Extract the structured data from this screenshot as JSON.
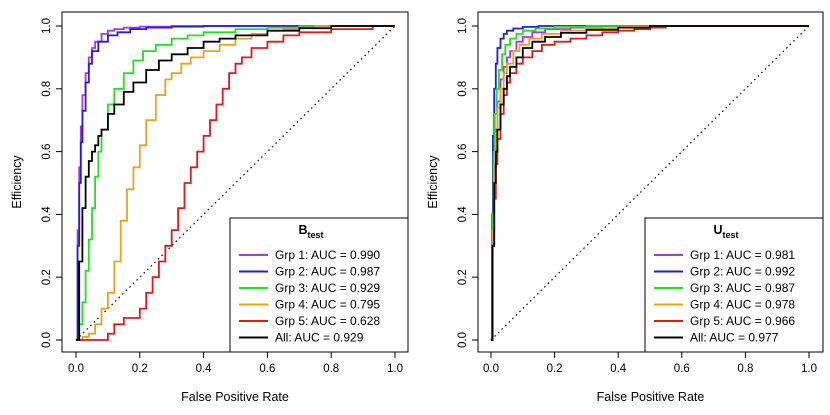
{
  "chart_data": [
    {
      "type": "line",
      "xlabel": "False Positive Rate",
      "ylabel": "Efficiency",
      "xlim": [
        0,
        1
      ],
      "ylim": [
        0,
        1
      ],
      "xticks": [
        "0.0",
        "0.2",
        "0.4",
        "0.6",
        "0.8",
        "1.0"
      ],
      "yticks": [
        "0.0",
        "0.2",
        "0.4",
        "0.6",
        "0.8",
        "1.0"
      ],
      "grid": false,
      "legend_position": "bottom-right",
      "legend_title": "B",
      "legend_title_sub": "test",
      "series": [
        {
          "name": "Grp 1: AUC = 0.990",
          "color": "#b035e0",
          "points": [
            [
              0,
              0
            ],
            [
              0.005,
              0.35
            ],
            [
              0.01,
              0.55
            ],
            [
              0.015,
              0.68
            ],
            [
              0.02,
              0.78
            ],
            [
              0.03,
              0.85
            ],
            [
              0.04,
              0.9
            ],
            [
              0.05,
              0.93
            ],
            [
              0.06,
              0.95
            ],
            [
              0.08,
              0.975
            ],
            [
              0.1,
              0.985
            ],
            [
              0.12,
              0.99
            ],
            [
              0.15,
              0.995
            ],
            [
              0.2,
              0.998
            ],
            [
              0.3,
              1
            ],
            [
              1,
              1
            ]
          ]
        },
        {
          "name": "Grp 2: AUC = 0.987",
          "color": "#1f1fdd",
          "points": [
            [
              0,
              0
            ],
            [
              0.005,
              0.3
            ],
            [
              0.01,
              0.5
            ],
            [
              0.015,
              0.63
            ],
            [
              0.02,
              0.73
            ],
            [
              0.03,
              0.82
            ],
            [
              0.04,
              0.88
            ],
            [
              0.05,
              0.92
            ],
            [
              0.07,
              0.95
            ],
            [
              0.1,
              0.97
            ],
            [
              0.13,
              0.98
            ],
            [
              0.17,
              0.99
            ],
            [
              0.22,
              0.995
            ],
            [
              0.3,
              0.998
            ],
            [
              0.4,
              1
            ],
            [
              1,
              1
            ]
          ]
        },
        {
          "name": "Grp 3: AUC = 0.929",
          "color": "#22e022",
          "points": [
            [
              0,
              0
            ],
            [
              0.01,
              0.05
            ],
            [
              0.02,
              0.12
            ],
            [
              0.03,
              0.22
            ],
            [
              0.04,
              0.32
            ],
            [
              0.05,
              0.42
            ],
            [
              0.06,
              0.52
            ],
            [
              0.07,
              0.6
            ],
            [
              0.08,
              0.67
            ],
            [
              0.1,
              0.75
            ],
            [
              0.12,
              0.8
            ],
            [
              0.15,
              0.85
            ],
            [
              0.18,
              0.89
            ],
            [
              0.21,
              0.92
            ],
            [
              0.25,
              0.94
            ],
            [
              0.3,
              0.96
            ],
            [
              0.35,
              0.97
            ],
            [
              0.4,
              0.98
            ],
            [
              0.5,
              0.99
            ],
            [
              0.6,
              0.995
            ],
            [
              0.7,
              1
            ],
            [
              1,
              1
            ]
          ]
        },
        {
          "name": "Grp 4: AUC = 0.795",
          "color": "#f0a020",
          "points": [
            [
              0,
              0
            ],
            [
              0.02,
              0.01
            ],
            [
              0.04,
              0.02
            ],
            [
              0.06,
              0.05
            ],
            [
              0.08,
              0.1
            ],
            [
              0.1,
              0.15
            ],
            [
              0.12,
              0.25
            ],
            [
              0.14,
              0.38
            ],
            [
              0.16,
              0.48
            ],
            [
              0.18,
              0.55
            ],
            [
              0.2,
              0.62
            ],
            [
              0.22,
              0.7
            ],
            [
              0.25,
              0.78
            ],
            [
              0.28,
              0.83
            ],
            [
              0.3,
              0.85
            ],
            [
              0.33,
              0.88
            ],
            [
              0.36,
              0.9
            ],
            [
              0.4,
              0.92
            ],
            [
              0.45,
              0.94
            ],
            [
              0.5,
              0.96
            ],
            [
              0.55,
              0.975
            ],
            [
              0.6,
              0.985
            ],
            [
              0.65,
              0.99
            ],
            [
              0.7,
              0.995
            ],
            [
              0.75,
              1
            ],
            [
              1,
              1
            ]
          ]
        },
        {
          "name": "Grp 5: AUC = 0.628",
          "color": "#e01a1a",
          "points": [
            [
              0,
              0
            ],
            [
              0.05,
              0
            ],
            [
              0.1,
              0.02
            ],
            [
              0.12,
              0.05
            ],
            [
              0.15,
              0.07
            ],
            [
              0.2,
              0.1
            ],
            [
              0.22,
              0.15
            ],
            [
              0.24,
              0.2
            ],
            [
              0.26,
              0.25
            ],
            [
              0.28,
              0.3
            ],
            [
              0.3,
              0.35
            ],
            [
              0.32,
              0.42
            ],
            [
              0.34,
              0.5
            ],
            [
              0.36,
              0.55
            ],
            [
              0.38,
              0.6
            ],
            [
              0.4,
              0.65
            ],
            [
              0.42,
              0.7
            ],
            [
              0.44,
              0.75
            ],
            [
              0.46,
              0.8
            ],
            [
              0.48,
              0.85
            ],
            [
              0.5,
              0.88
            ],
            [
              0.52,
              0.9
            ],
            [
              0.55,
              0.93
            ],
            [
              0.6,
              0.95
            ],
            [
              0.65,
              0.97
            ],
            [
              0.7,
              0.98
            ],
            [
              0.8,
              0.99
            ],
            [
              0.93,
              0.99
            ],
            [
              0.93,
              1
            ],
            [
              1,
              1
            ]
          ]
        },
        {
          "name": "All: AUC = 0.929",
          "color": "#000000",
          "points": [
            [
              0,
              0
            ],
            [
              0.01,
              0.25
            ],
            [
              0.02,
              0.42
            ],
            [
              0.03,
              0.52
            ],
            [
              0.04,
              0.57
            ],
            [
              0.05,
              0.6
            ],
            [
              0.06,
              0.62
            ],
            [
              0.07,
              0.65
            ],
            [
              0.08,
              0.67
            ],
            [
              0.1,
              0.72
            ],
            [
              0.12,
              0.75
            ],
            [
              0.15,
              0.79
            ],
            [
              0.18,
              0.82
            ],
            [
              0.22,
              0.86
            ],
            [
              0.26,
              0.89
            ],
            [
              0.3,
              0.91
            ],
            [
              0.35,
              0.93
            ],
            [
              0.4,
              0.95
            ],
            [
              0.45,
              0.96
            ],
            [
              0.5,
              0.97
            ],
            [
              0.6,
              0.985
            ],
            [
              0.7,
              0.993
            ],
            [
              0.8,
              1
            ],
            [
              1,
              1
            ]
          ]
        }
      ]
    },
    {
      "type": "line",
      "xlabel": "False Positive Rate",
      "ylabel": "Efficiency",
      "xlim": [
        0,
        1
      ],
      "ylim": [
        0,
        1
      ],
      "xticks": [
        "0.0",
        "0.2",
        "0.4",
        "0.6",
        "0.8",
        "1.0"
      ],
      "yticks": [
        "0.0",
        "0.2",
        "0.4",
        "0.6",
        "0.8",
        "1.0"
      ],
      "grid": false,
      "legend_position": "bottom-right",
      "legend_title": "U",
      "legend_title_sub": "test",
      "series": [
        {
          "name": "Grp 1: AUC = 0.981",
          "color": "#b035e0",
          "points": [
            [
              0,
              0
            ],
            [
              0.005,
              0.35
            ],
            [
              0.01,
              0.55
            ],
            [
              0.015,
              0.67
            ],
            [
              0.02,
              0.76
            ],
            [
              0.03,
              0.83
            ],
            [
              0.04,
              0.87
            ],
            [
              0.05,
              0.9
            ],
            [
              0.06,
              0.92
            ],
            [
              0.08,
              0.95
            ],
            [
              0.1,
              0.965
            ],
            [
              0.13,
              0.98
            ],
            [
              0.17,
              0.99
            ],
            [
              0.25,
              0.995
            ],
            [
              0.35,
              1
            ],
            [
              1,
              1
            ]
          ]
        },
        {
          "name": "Grp 2: AUC = 0.992",
          "color": "#1f1fdd",
          "points": [
            [
              0,
              0
            ],
            [
              0.003,
              0.4
            ],
            [
              0.006,
              0.65
            ],
            [
              0.01,
              0.8
            ],
            [
              0.015,
              0.88
            ],
            [
              0.02,
              0.93
            ],
            [
              0.03,
              0.96
            ],
            [
              0.04,
              0.975
            ],
            [
              0.05,
              0.985
            ],
            [
              0.07,
              0.992
            ],
            [
              0.1,
              0.997
            ],
            [
              0.15,
              1
            ],
            [
              1,
              1
            ]
          ]
        },
        {
          "name": "Grp 3: AUC = 0.987",
          "color": "#22e022",
          "points": [
            [
              0,
              0
            ],
            [
              0.004,
              0.4
            ],
            [
              0.008,
              0.6
            ],
            [
              0.012,
              0.72
            ],
            [
              0.018,
              0.8
            ],
            [
              0.025,
              0.86
            ],
            [
              0.035,
              0.91
            ],
            [
              0.045,
              0.94
            ],
            [
              0.06,
              0.96
            ],
            [
              0.08,
              0.975
            ],
            [
              0.1,
              0.985
            ],
            [
              0.14,
              0.992
            ],
            [
              0.2,
              0.997
            ],
            [
              0.3,
              1
            ],
            [
              1,
              1
            ]
          ]
        },
        {
          "name": "Grp 4: AUC = 0.978",
          "color": "#f0a020",
          "points": [
            [
              0,
              0
            ],
            [
              0.005,
              0.35
            ],
            [
              0.01,
              0.55
            ],
            [
              0.015,
              0.66
            ],
            [
              0.02,
              0.74
            ],
            [
              0.03,
              0.8
            ],
            [
              0.04,
              0.85
            ],
            [
              0.05,
              0.88
            ],
            [
              0.07,
              0.92
            ],
            [
              0.09,
              0.94
            ],
            [
              0.12,
              0.96
            ],
            [
              0.16,
              0.975
            ],
            [
              0.22,
              0.985
            ],
            [
              0.3,
              0.993
            ],
            [
              0.4,
              0.997
            ],
            [
              0.5,
              1
            ],
            [
              1,
              1
            ]
          ]
        },
        {
          "name": "Grp 5: AUC = 0.966",
          "color": "#e01a1a",
          "points": [
            [
              0,
              0
            ],
            [
              0.005,
              0.3
            ],
            [
              0.01,
              0.45
            ],
            [
              0.015,
              0.56
            ],
            [
              0.02,
              0.64
            ],
            [
              0.03,
              0.72
            ],
            [
              0.04,
              0.78
            ],
            [
              0.05,
              0.82
            ],
            [
              0.06,
              0.85
            ],
            [
              0.08,
              0.88
            ],
            [
              0.1,
              0.9
            ],
            [
              0.13,
              0.92
            ],
            [
              0.16,
              0.94
            ],
            [
              0.2,
              0.95
            ],
            [
              0.25,
              0.96
            ],
            [
              0.3,
              0.97
            ],
            [
              0.35,
              0.98
            ],
            [
              0.4,
              0.985
            ],
            [
              0.45,
              0.99
            ],
            [
              0.5,
              0.995
            ],
            [
              0.55,
              1
            ],
            [
              1,
              1
            ]
          ]
        },
        {
          "name": "All: AUC = 0.977",
          "color": "#000000",
          "points": [
            [
              0,
              0
            ],
            [
              0.005,
              0.3
            ],
            [
              0.01,
              0.5
            ],
            [
              0.015,
              0.6
            ],
            [
              0.02,
              0.67
            ],
            [
              0.03,
              0.75
            ],
            [
              0.04,
              0.8
            ],
            [
              0.05,
              0.84
            ],
            [
              0.06,
              0.87
            ],
            [
              0.08,
              0.9
            ],
            [
              0.1,
              0.93
            ],
            [
              0.13,
              0.95
            ],
            [
              0.17,
              0.965
            ],
            [
              0.22,
              0.978
            ],
            [
              0.3,
              0.988
            ],
            [
              0.4,
              0.995
            ],
            [
              0.5,
              1
            ],
            [
              1,
              1
            ]
          ]
        }
      ]
    }
  ]
}
